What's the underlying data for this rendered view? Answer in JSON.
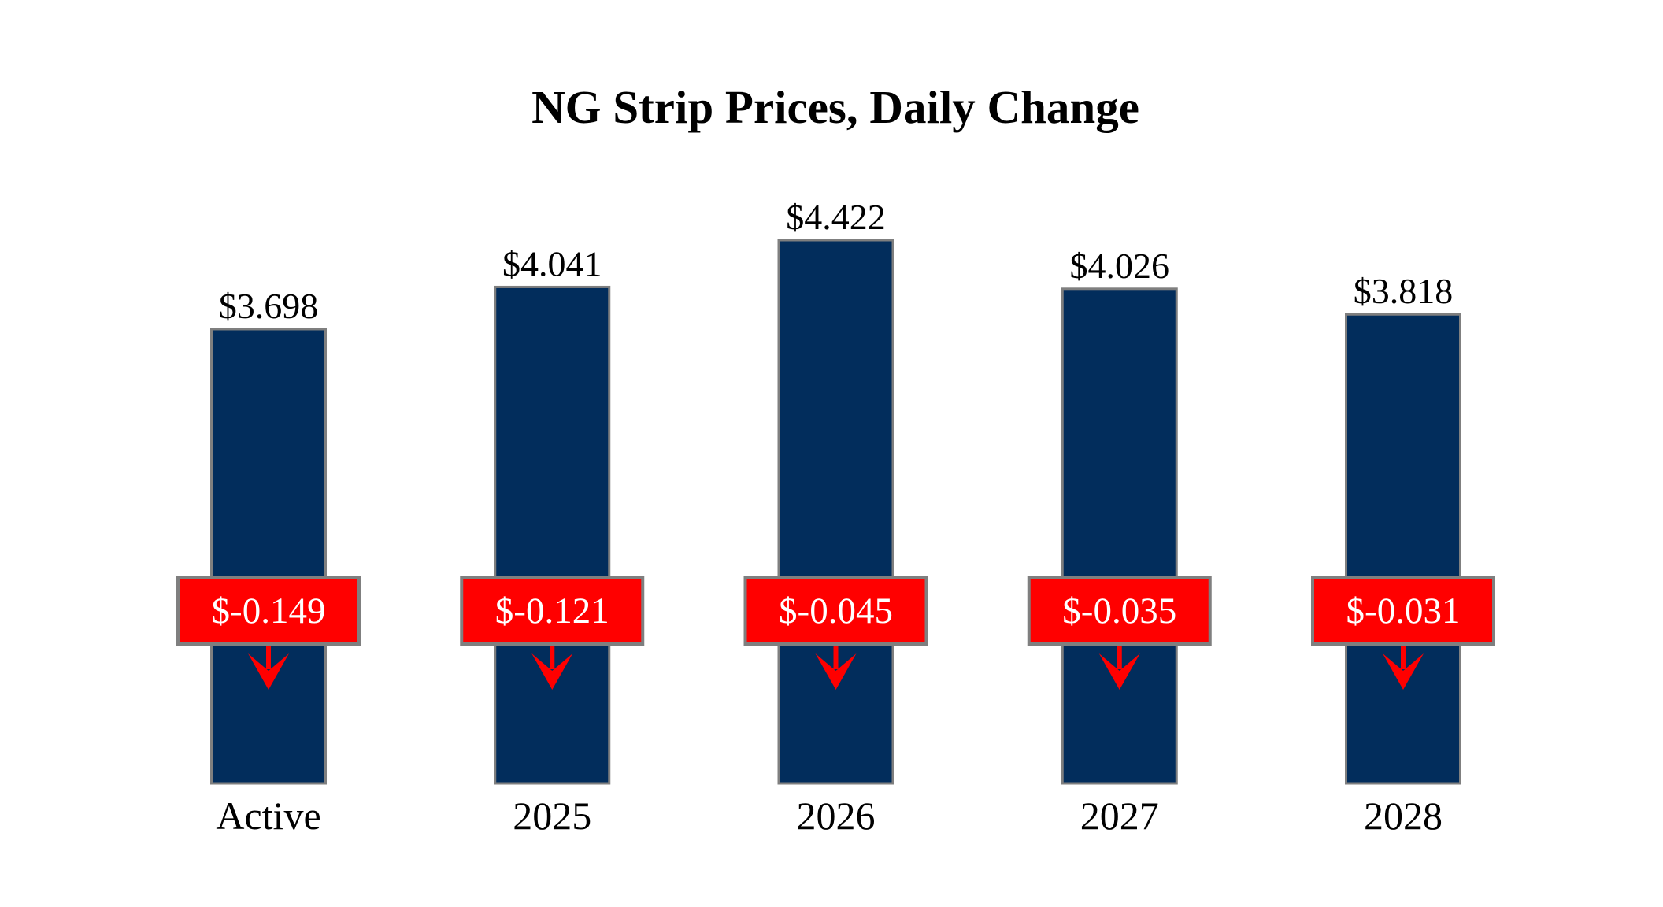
{
  "chart_data": {
    "type": "bar",
    "title": "NG Strip Prices, Daily Change",
    "categories": [
      "Active",
      "2025",
      "2026",
      "2027",
      "2028"
    ],
    "values": [
      3.698,
      4.041,
      4.422,
      4.026,
      3.818
    ],
    "value_labels": [
      "$3.698",
      "$4.041",
      "$4.422",
      "$4.026",
      "$3.818"
    ],
    "changes": [
      -0.149,
      -0.121,
      -0.045,
      -0.035,
      -0.031
    ],
    "change_labels": [
      "$-0.149",
      "$-0.121",
      "$-0.045",
      "$-0.035",
      "$-0.031"
    ],
    "change_direction": "down",
    "ylim": [
      0,
      4.422
    ],
    "grid": false,
    "colors": {
      "bar": "#022d5c",
      "bar_border": "#7f7f7f",
      "change_box": "#ff0000",
      "change_text": "#ffffff",
      "arrow": "#ff0000"
    }
  }
}
